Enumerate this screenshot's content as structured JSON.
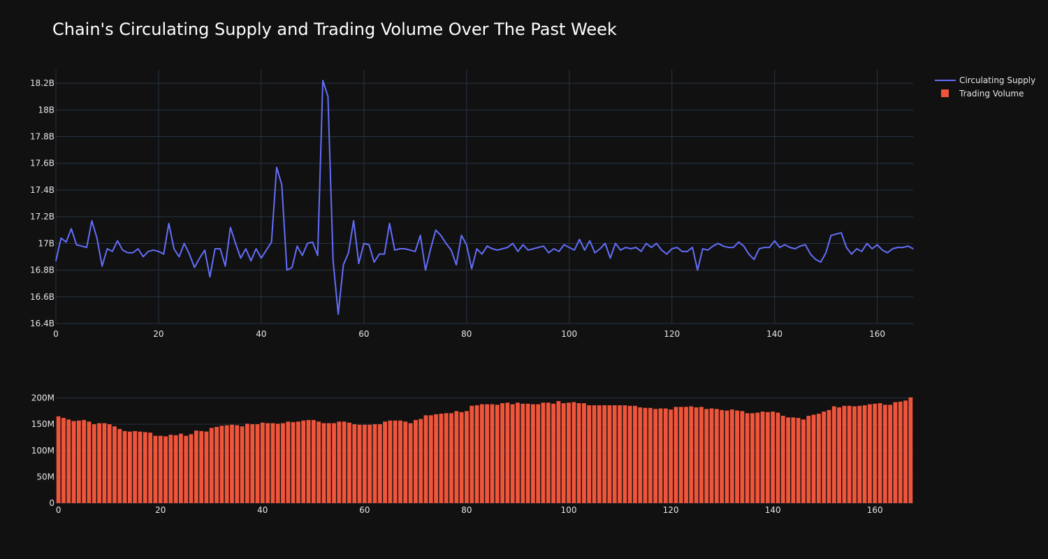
{
  "chart_data": {
    "type": "line+bar",
    "title": "Chain's Circulating Supply and Trading Volume Over The Past Week",
    "legend": {
      "placement": "top-right",
      "items": [
        "Circulating Supply",
        "Trading Volume"
      ]
    },
    "colors": {
      "background": "#111111",
      "grid": "#283442",
      "supply": "#636efa",
      "volume": "#ef553b",
      "text": "#e6e6e6"
    },
    "supply_chart": {
      "series_name": "Circulating Supply",
      "xlim": [
        0,
        167
      ],
      "ylim": [
        16.4,
        18.3
      ],
      "yticks": [
        16.4,
        16.6,
        16.8,
        17.0,
        17.2,
        17.4,
        17.6,
        17.8,
        18.0,
        18.2
      ],
      "ytick_labels": [
        "16.4B",
        "16.6B",
        "16.8B",
        "17B",
        "17.2B",
        "17.4B",
        "17.6B",
        "17.8B",
        "18B",
        "18.2B"
      ],
      "xticks": [
        0,
        20,
        40,
        60,
        80,
        100,
        120,
        140,
        160
      ],
      "xtick_labels": [
        "0",
        "20",
        "40",
        "60",
        "80",
        "100",
        "120",
        "140",
        "160"
      ],
      "values": [
        16.87,
        17.04,
        17.01,
        17.11,
        16.99,
        16.98,
        16.97,
        17.17,
        17.04,
        16.83,
        16.96,
        16.94,
        17.02,
        16.95,
        16.93,
        16.93,
        16.96,
        16.9,
        16.94,
        16.95,
        16.94,
        16.92,
        17.15,
        16.96,
        16.9,
        17.0,
        16.92,
        16.82,
        16.89,
        16.95,
        16.75,
        16.96,
        16.96,
        16.83,
        17.12,
        17.0,
        16.89,
        16.96,
        16.87,
        16.96,
        16.89,
        16.95,
        17.01,
        17.57,
        17.44,
        16.8,
        16.82,
        16.98,
        16.91,
        17.0,
        17.01,
        16.91,
        18.22,
        18.1,
        16.87,
        16.47,
        16.84,
        16.93,
        17.17,
        16.85,
        17.0,
        16.99,
        16.86,
        16.92,
        16.92,
        17.15,
        16.95,
        16.96,
        16.96,
        16.95,
        16.94,
        17.06,
        16.8,
        16.96,
        17.1,
        17.06,
        17.0,
        16.95,
        16.84,
        17.06,
        16.99,
        16.81,
        16.96,
        16.92,
        16.98,
        16.96,
        16.95,
        16.96,
        16.97,
        17.0,
        16.94,
        16.99,
        16.95,
        16.96,
        16.97,
        16.98,
        16.93,
        16.96,
        16.94,
        16.99,
        16.97,
        16.95,
        17.03,
        16.95,
        17.02,
        16.93,
        16.96,
        17.0,
        16.89,
        17.0,
        16.95,
        16.97,
        16.96,
        16.97,
        16.94,
        17.0,
        16.97,
        17.0,
        16.95,
        16.92,
        16.96,
        16.97,
        16.94,
        16.94,
        16.97,
        16.8,
        16.96,
        16.95,
        16.98,
        17.0,
        16.98,
        16.97,
        16.97,
        17.01,
        16.98,
        16.92,
        16.88,
        16.96,
        16.97,
        16.97,
        17.02,
        16.97,
        16.99,
        16.97,
        16.96,
        16.98,
        16.99,
        16.92,
        16.88,
        16.86,
        16.93,
        17.06,
        17.07,
        17.08,
        16.97,
        16.92,
        16.96,
        16.94,
        17.0,
        16.96,
        16.99,
        16.95,
        16.93,
        16.96,
        16.97,
        16.97,
        16.98,
        16.96
      ]
    },
    "volume_chart": {
      "series_name": "Trading Volume",
      "xlim": [
        0,
        167
      ],
      "ylim": [
        0,
        202
      ],
      "yticks": [
        0,
        50,
        100,
        150,
        200
      ],
      "ytick_labels": [
        "0",
        "50M",
        "100M",
        "150M",
        "200M"
      ],
      "xticks": [
        0,
        20,
        40,
        60,
        80,
        100,
        120,
        140,
        160
      ],
      "xtick_labels": [
        "0",
        "20",
        "40",
        "60",
        "80",
        "100",
        "120",
        "140",
        "160"
      ],
      "values": [
        165,
        162,
        159,
        156,
        157,
        158,
        155,
        150,
        152,
        152,
        150,
        146,
        141,
        137,
        136,
        137,
        136,
        135,
        134,
        128,
        128,
        127,
        130,
        129,
        132,
        128,
        131,
        138,
        137,
        136,
        143,
        145,
        147,
        148,
        149,
        148,
        146,
        151,
        150,
        150,
        153,
        152,
        152,
        151,
        152,
        155,
        154,
        155,
        157,
        158,
        158,
        155,
        152,
        152,
        152,
        155,
        155,
        153,
        150,
        149,
        149,
        149,
        150,
        150,
        155,
        157,
        157,
        157,
        155,
        152,
        158,
        160,
        167,
        167,
        169,
        170,
        171,
        171,
        175,
        173,
        175,
        185,
        186,
        188,
        188,
        188,
        187,
        190,
        191,
        188,
        191,
        189,
        189,
        188,
        188,
        191,
        191,
        189,
        194,
        190,
        191,
        192,
        190,
        190,
        186,
        186,
        186,
        186,
        186,
        186,
        186,
        186,
        185,
        185,
        182,
        181,
        181,
        179,
        180,
        180,
        178,
        183,
        183,
        183,
        184,
        182,
        183,
        179,
        180,
        179,
        177,
        176,
        178,
        176,
        175,
        171,
        171,
        172,
        174,
        173,
        174,
        172,
        166,
        163,
        163,
        162,
        159,
        166,
        168,
        170,
        174,
        177,
        184,
        182,
        185,
        185,
        184,
        185,
        186,
        188,
        189,
        190,
        187,
        187,
        192,
        193,
        195,
        201
      ]
    }
  }
}
